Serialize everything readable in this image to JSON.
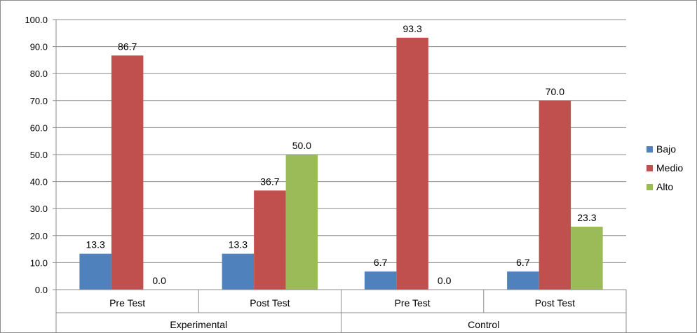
{
  "chart_data": {
    "type": "bar",
    "title": "",
    "xlabel": "",
    "ylabel": "",
    "ylim": [
      0,
      100
    ],
    "yticks": [
      "0.0",
      "10.0",
      "20.0",
      "30.0",
      "40.0",
      "50.0",
      "60.0",
      "70.0",
      "80.0",
      "90.0",
      "100.0"
    ],
    "groups": [
      {
        "name": "Experimental",
        "categories": [
          "Pre Test",
          "Post Test"
        ]
      },
      {
        "name": "Control",
        "categories": [
          "Pre Test",
          "Post Test"
        ]
      }
    ],
    "categories": [
      "Pre Test",
      "Post Test",
      "Pre Test",
      "Post Test"
    ],
    "series": [
      {
        "name": "Bajo",
        "color": "#4f81bd",
        "values": [
          13.3,
          13.3,
          6.7,
          6.7
        ],
        "labels": [
          "13.3",
          "13.3",
          "6.7",
          "6.7"
        ]
      },
      {
        "name": "Medio",
        "color": "#c0504d",
        "values": [
          86.7,
          36.7,
          93.3,
          70.0
        ],
        "labels": [
          "86.7",
          "36.7",
          "93.3",
          "70.0"
        ]
      },
      {
        "name": "Alto",
        "color": "#9bbb59",
        "values": [
          0.0,
          50.0,
          0.0,
          23.3
        ],
        "labels": [
          "0.0",
          "50.0",
          "0.0",
          "23.3"
        ]
      }
    ],
    "grid": true,
    "legend": "right"
  }
}
